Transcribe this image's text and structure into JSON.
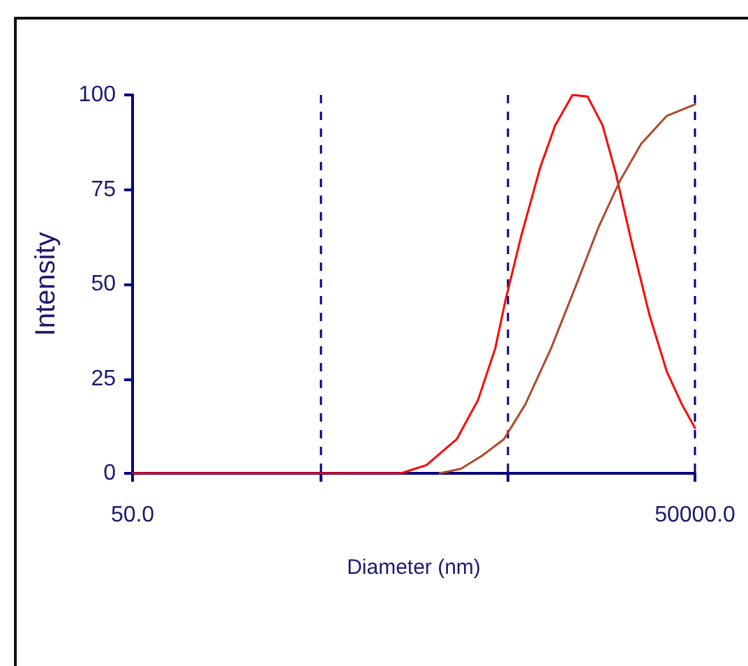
{
  "chart_data": {
    "type": "line",
    "xlabel": "Diameter (nm)",
    "ylabel": "Intensity",
    "log": "x",
    "xlim": [
      50,
      50000
    ],
    "xticks": [
      {
        "value": 50,
        "label": "50.0"
      },
      {
        "value": 500,
        "label": null
      },
      {
        "value": 5000,
        "label": null
      },
      {
        "value": 50000,
        "label": "50000.0"
      }
    ],
    "ylim": [
      0,
      100
    ],
    "yticks": [
      0,
      25,
      50,
      75,
      100
    ],
    "grid": "x",
    "marker": "none",
    "line_style": "solid",
    "series": [
      {
        "color": "#ff0000",
        "x": [
          50,
          1349,
          1850,
          2678,
          3481,
          4300,
          4855,
          5900,
          7480,
          8990,
          11110,
          13360,
          16060,
          18820,
          23230,
          28680,
          35430,
          42600,
          50000
        ],
        "values": [
          0,
          0,
          2.2,
          9,
          19.4,
          33,
          45.3,
          62.5,
          80.9,
          92,
          100,
          99.6,
          92,
          79.7,
          60,
          41.6,
          26.8,
          18.2,
          12
        ]
      },
      {
        "color": "#b0482c",
        "x": [
          2167,
          2820,
          3670,
          4780,
          6220,
          8530,
          11720,
          15250,
          19850,
          25810,
          35430,
          50000
        ],
        "values": [
          0,
          1.2,
          4.7,
          9,
          18.2,
          33,
          50.2,
          64.9,
          77.2,
          87.1,
          94.5,
          97.5
        ]
      }
    ]
  }
}
